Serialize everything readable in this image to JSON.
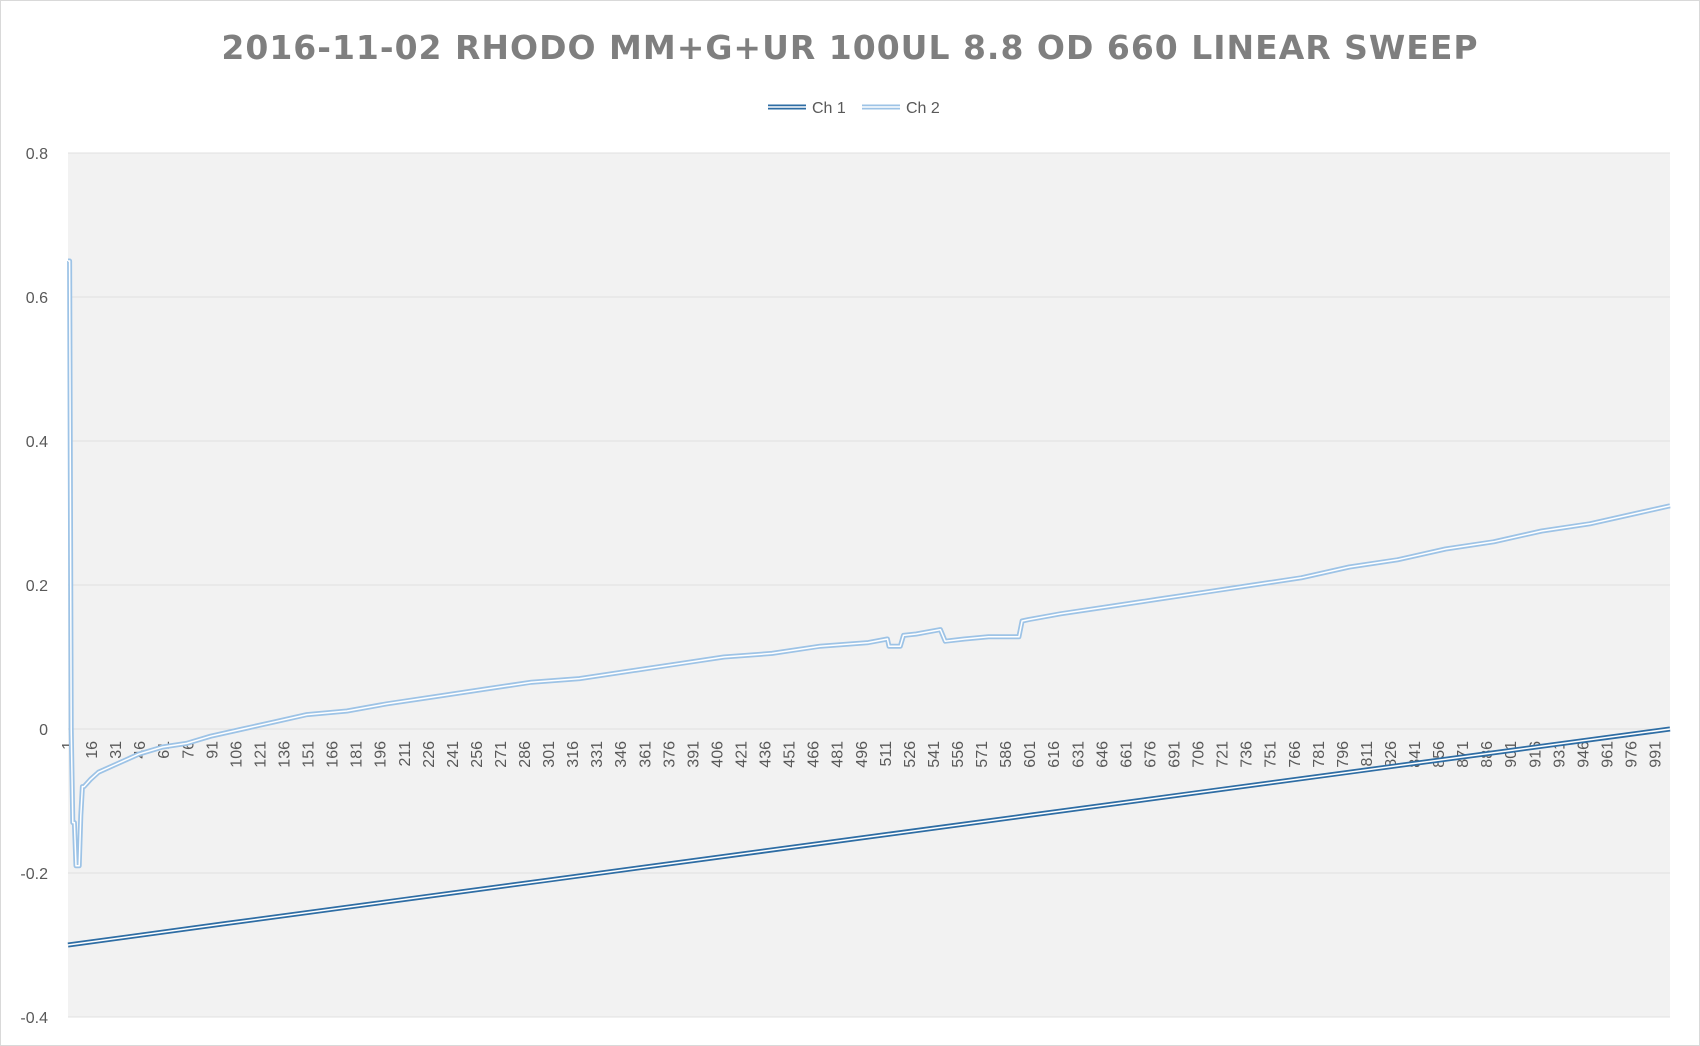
{
  "chart_data": {
    "type": "line",
    "title": "2016-11-02 RHODO MM+G+UR 100UL 8.8 OD 660 LINEAR SWEEP",
    "xlabel": "",
    "ylabel": "",
    "ylim": [
      -0.4,
      0.8
    ],
    "yticks": [
      "-0.4",
      "-0.2",
      "0",
      "0.2",
      "0.4",
      "0.6",
      "0.8"
    ],
    "xrange": [
      1,
      1000
    ],
    "xticks": [
      "1",
      "16",
      "31",
      "46",
      "61",
      "76",
      "91",
      "106",
      "121",
      "136",
      "151",
      "166",
      "181",
      "196",
      "211",
      "226",
      "241",
      "256",
      "271",
      "286",
      "301",
      "316",
      "331",
      "346",
      "361",
      "376",
      "391",
      "406",
      "421",
      "436",
      "451",
      "466",
      "481",
      "496",
      "511",
      "526",
      "541",
      "556",
      "571",
      "586",
      "601",
      "616",
      "631",
      "646",
      "661",
      "676",
      "691",
      "706",
      "721",
      "736",
      "751",
      "766",
      "781",
      "796",
      "811",
      "826",
      "841",
      "856",
      "871",
      "886",
      "901",
      "916",
      "931",
      "946",
      "961",
      "976",
      "991"
    ],
    "legend": "top",
    "grid": true,
    "series": [
      {
        "name": "Ch 1",
        "color": "#2e6da4",
        "x": [
          1,
          100,
          200,
          300,
          400,
          500,
          600,
          700,
          800,
          900,
          1000
        ],
        "values": [
          -0.3,
          -0.27,
          -0.24,
          -0.21,
          -0.18,
          -0.15,
          -0.12,
          -0.09,
          -0.06,
          -0.03,
          0.0
        ]
      },
      {
        "name": "Ch 2",
        "color": "#9dc3e6",
        "x": [
          1,
          2,
          3,
          4,
          5,
          6,
          7,
          8,
          9,
          10,
          11,
          15,
          20,
          30,
          45,
          60,
          75,
          90,
          110,
          130,
          150,
          175,
          200,
          230,
          260,
          290,
          320,
          350,
          380,
          410,
          440,
          470,
          500,
          512,
          513,
          520,
          522,
          530,
          545,
          548,
          560,
          575,
          590,
          594,
          596,
          600,
          620,
          650,
          680,
          710,
          740,
          770,
          800,
          830,
          860,
          890,
          920,
          950,
          980,
          1000
        ],
        "values": [
          0.65,
          0.65,
          0.0,
          -0.13,
          -0.13,
          -0.19,
          -0.19,
          -0.19,
          -0.12,
          -0.08,
          -0.08,
          -0.07,
          -0.06,
          -0.05,
          -0.035,
          -0.025,
          -0.02,
          -0.01,
          0.0,
          0.01,
          0.02,
          0.025,
          0.035,
          0.045,
          0.055,
          0.065,
          0.07,
          0.08,
          0.09,
          0.1,
          0.105,
          0.115,
          0.12,
          0.125,
          0.115,
          0.115,
          0.13,
          0.132,
          0.138,
          0.122,
          0.125,
          0.128,
          0.128,
          0.128,
          0.15,
          0.152,
          0.16,
          0.17,
          0.18,
          0.19,
          0.2,
          0.21,
          0.225,
          0.235,
          0.25,
          0.26,
          0.275,
          0.285,
          0.3,
          0.31
        ]
      }
    ]
  }
}
